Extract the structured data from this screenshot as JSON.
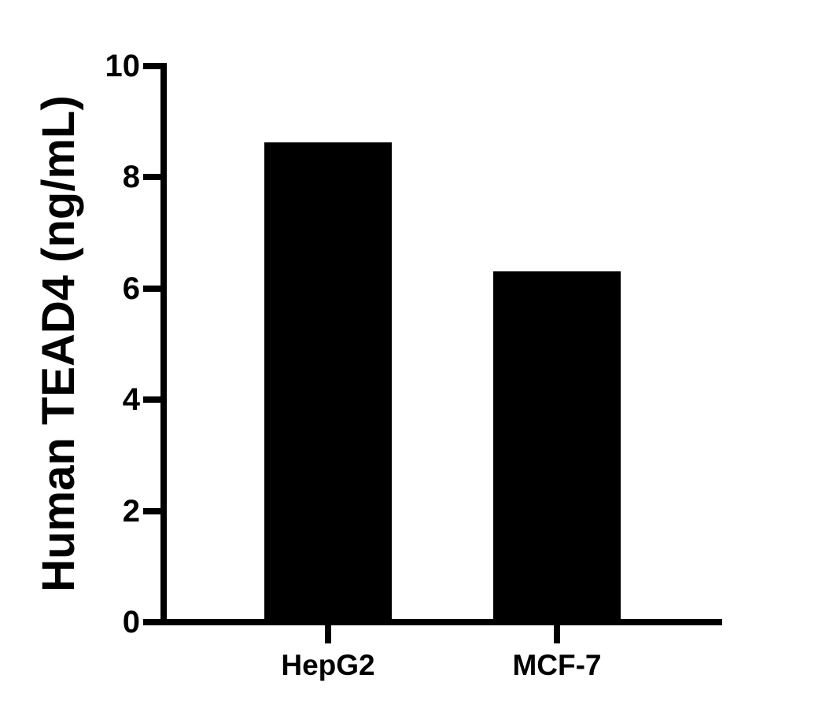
{
  "chart_data": {
    "type": "bar",
    "ylabel": "Human TEAD4 (ng/mL)",
    "categories": [
      "HepG2",
      "MCF-7"
    ],
    "values": [
      8.63,
      6.31
    ],
    "ylim": [
      0,
      10
    ],
    "ytick_values": [
      0,
      2,
      4,
      6,
      8,
      10
    ],
    "ytick_labels": [
      "0",
      "2",
      "4",
      "6",
      "8",
      "10"
    ],
    "bar_color": "#000000",
    "axis_color": "#000000",
    "text_color": "#000000",
    "background_color": "#ffffff",
    "grid": false,
    "legend": false
  }
}
